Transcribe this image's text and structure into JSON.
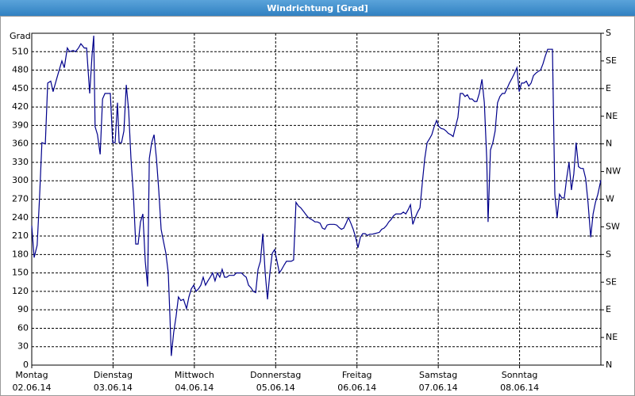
{
  "chart_data": {
    "type": "line",
    "title": "Windrichtung [Grad]",
    "y_label": "Grad",
    "xlim": [
      0,
      168
    ],
    "xticks": [
      {
        "value": 0,
        "label": "Montag",
        "date": "02.06.14"
      },
      {
        "value": 24,
        "label": "Dienstag",
        "date": "03.06.14"
      },
      {
        "value": 48,
        "label": "Mittwoch",
        "date": "04.06.14"
      },
      {
        "value": 72,
        "label": "Donnerstag",
        "date": "05.06.14"
      },
      {
        "value": 96,
        "label": "Freitag",
        "date": "06.06.14"
      },
      {
        "value": 120,
        "label": "Samstag",
        "date": "07.06.14"
      },
      {
        "value": 144,
        "label": "Sonntag",
        "date": "08.06.14"
      }
    ],
    "ylim": [
      0,
      540
    ],
    "yticks": [
      0,
      30,
      60,
      90,
      120,
      150,
      180,
      210,
      240,
      270,
      300,
      330,
      360,
      390,
      420,
      450,
      480,
      510
    ],
    "y2lim": [
      0,
      540
    ],
    "y2ticks": [
      {
        "value": 0,
        "label": "N"
      },
      {
        "value": 45,
        "label": "NE"
      },
      {
        "value": 90,
        "label": "E"
      },
      {
        "value": 135,
        "label": "SE"
      },
      {
        "value": 180,
        "label": "S"
      },
      {
        "value": 225,
        "label": "SW"
      },
      {
        "value": 270,
        "label": "W"
      },
      {
        "value": 315,
        "label": "NW"
      },
      {
        "value": 360,
        "label": "N"
      },
      {
        "value": 405,
        "label": "NE"
      },
      {
        "value": 450,
        "label": "E"
      },
      {
        "value": 495,
        "label": "SE"
      },
      {
        "value": 540,
        "label": "S"
      }
    ],
    "grid": true,
    "series": [
      {
        "color": "#00008b",
        "x": [
          0,
          0.7,
          1.6,
          2.3,
          3.0,
          4.0,
          4.7,
          5.6,
          6.3,
          7.3,
          8.0,
          8.9,
          9.6,
          10.5,
          11.2,
          12.2,
          12.9,
          13.8,
          14.5,
          15.5,
          16.2,
          17.1,
          17.8,
          18.3,
          18.7,
          19.4,
          20.2,
          20.9,
          21.6,
          22.5,
          23.2,
          23.9,
          24.6,
          25.3,
          25.8,
          26.5,
          27.2,
          27.9,
          28.6,
          29.3,
          30.0,
          30.7,
          31.4,
          32.1,
          32.8,
          33.5,
          34.2,
          34.7,
          35.4,
          36.1,
          36.8,
          37.5,
          38.2,
          38.9,
          39.6,
          40.3,
          40.8,
          41.2,
          41.9,
          42.6,
          43.3,
          44.0,
          44.8,
          45.7,
          46.4,
          47.1,
          47.8,
          48.5,
          49.2,
          49.9,
          50.6,
          51.3,
          52.0,
          52.7,
          53.4,
          54.1,
          54.8,
          55.5,
          56.2,
          56.9,
          57.6,
          58.3,
          59.0,
          59.7,
          60.4,
          61.2,
          61.9,
          62.6,
          63.3,
          64.0,
          64.7,
          65.4,
          66.1,
          66.8,
          67.5,
          68.2,
          68.9,
          69.6,
          70.3,
          71.0,
          71.7,
          72.4,
          73.1,
          73.8,
          74.5,
          75.2,
          75.9,
          76.6,
          77.3,
          78.0,
          78.7,
          79.4,
          80.1,
          80.8,
          81.5,
          82.2,
          82.9,
          83.6,
          84.3,
          85.1,
          85.8,
          86.5,
          87.2,
          87.9,
          88.6,
          89.3,
          90.0,
          90.7,
          91.4,
          92.1,
          92.8,
          93.5,
          94.2,
          94.9,
          95.6,
          96.3,
          97.0,
          97.7,
          98.4,
          99.1,
          99.8,
          100.5,
          101.2,
          101.9,
          102.6,
          103.3,
          104.0,
          104.7,
          105.4,
          106.1,
          106.8,
          107.5,
          108.2,
          109.0,
          109.7,
          110.4,
          111.1,
          111.8,
          112.5,
          113.2,
          113.9,
          114.6,
          115.3,
          116.0,
          116.7,
          117.4,
          118.1,
          118.8,
          119.5,
          120.2,
          120.9,
          121.6,
          122.3,
          123.0,
          123.7,
          124.4,
          125.1,
          125.8,
          126.5,
          127.2,
          127.9,
          128.6,
          129.3,
          130.0,
          130.7,
          131.4,
          132.1,
          132.9,
          133.6,
          134.3,
          134.7,
          135.4,
          136.1,
          136.8,
          137.5,
          138.2,
          138.9,
          139.6,
          140.3,
          141.0,
          141.8,
          142.5,
          143.2,
          143.9,
          144.6,
          145.3,
          146.0,
          146.7,
          147.4,
          148.1,
          148.8,
          149.5,
          150.2,
          150.9,
          151.6,
          152.3,
          153.0,
          153.7,
          154.4,
          155.1,
          155.8,
          156.5,
          157.2,
          157.9,
          158.6,
          159.3,
          160.0,
          160.7,
          161.4,
          162.1,
          162.8,
          163.5,
          164.2,
          165.0,
          165.7,
          166.4,
          167.1,
          168.0
        ],
        "values": [
          227,
          175,
          195,
          272,
          362,
          360,
          459,
          462,
          445,
          465,
          478,
          495,
          484,
          516,
          510,
          512,
          510,
          516,
          523,
          516,
          516,
          442,
          505,
          536,
          388,
          375,
          343,
          433,
          442,
          442,
          442,
          362,
          362,
          427,
          362,
          362,
          381,
          456,
          414,
          336,
          279,
          197,
          197,
          233,
          246,
          169,
          128,
          336,
          362,
          375,
          336,
          285,
          221,
          201,
          182,
          150,
          79,
          15,
          53,
          79,
          111,
          105,
          107,
          92,
          111,
          124,
          130,
          120,
          124,
          130,
          143,
          130,
          137,
          143,
          150,
          137,
          150,
          143,
          156,
          143,
          143,
          146,
          146,
          146,
          150,
          150,
          150,
          146,
          143,
          130,
          126,
          120,
          118,
          156,
          169,
          214,
          150,
          107,
          150,
          182,
          188,
          169,
          150,
          156,
          163,
          169,
          169,
          169,
          171,
          265,
          259,
          256,
          251,
          246,
          241,
          238,
          236,
          233,
          233,
          231,
          223,
          221,
          228,
          229,
          229,
          229,
          228,
          224,
          221,
          223,
          231,
          240,
          231,
          221,
          208,
          191,
          208,
          214,
          214,
          211,
          213,
          213,
          214,
          215,
          216,
          221,
          223,
          227,
          233,
          237,
          243,
          246,
          246,
          246,
          249,
          246,
          253,
          261,
          229,
          240,
          249,
          256,
          297,
          336,
          362,
          368,
          375,
          388,
          398,
          388,
          385,
          384,
          381,
          377,
          375,
          372,
          388,
          403,
          442,
          442,
          437,
          440,
          433,
          433,
          429,
          429,
          442,
          465,
          427,
          336,
          233,
          350,
          362,
          381,
          427,
          437,
          442,
          442,
          450,
          459,
          467,
          475,
          484,
          445,
          459,
          459,
          462,
          454,
          459,
          471,
          475,
          478,
          480,
          490,
          503,
          514,
          514,
          514,
          278,
          240,
          278,
          272,
          272,
          304,
          330,
          285,
          311,
          362,
          323,
          320,
          320,
          304,
          265,
          208,
          246,
          265,
          278,
          301
        ]
      }
    ]
  }
}
